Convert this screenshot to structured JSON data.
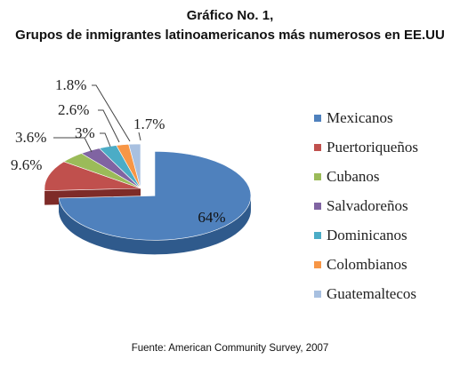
{
  "title_line1": "Gráfico No. 1,",
  "title_line2": "Grupos de inmigrantes latinoamericanos más numerosos en EE.UU",
  "source": "Fuente: American Community Survey, 2007",
  "chart_data": {
    "type": "pie",
    "style": "3d exploded first slice",
    "legend_position": "right",
    "categories": [
      "Mexicanos",
      "Puertoriqueños",
      "Cubanos",
      "Salvadoreños",
      "Dominicanos",
      "Colombianos",
      "Guatemaltecos"
    ],
    "values": [
      64,
      9.6,
      3.6,
      3,
      2.6,
      1.8,
      1.7
    ],
    "labels": [
      "64%",
      "9.6%",
      "3.6%",
      "3%",
      "2.6%",
      "1.8%",
      "1.7%"
    ],
    "colors": [
      "#4f81bd",
      "#c0504d",
      "#9bbb59",
      "#8064a2",
      "#4bacc6",
      "#f79646",
      "#a8c0e0"
    ],
    "dark_colors": [
      "#2f5a8c",
      "#7e2b28",
      "#6a8a32",
      "#4e3a6e",
      "#2a7a91",
      "#b86818",
      "#7a92b8"
    ]
  }
}
